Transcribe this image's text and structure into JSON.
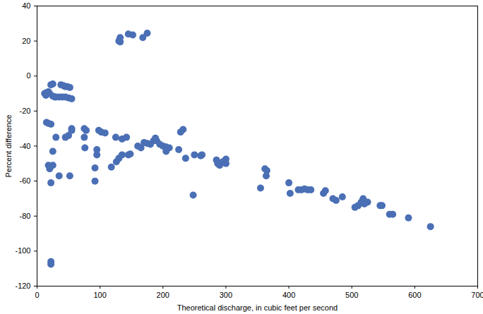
{
  "chart_data": {
    "type": "scatter",
    "x_label": "Theoretical discharge, in cubic feet per second",
    "y_label": "Percent difference",
    "color": "#4a6fb5",
    "marker": "circle",
    "grid": false,
    "xlim": [
      0,
      700
    ],
    "xticks": [
      0,
      100,
      200,
      300,
      400,
      500,
      600,
      700
    ],
    "ylim": [
      -120,
      40
    ],
    "yticks": [
      -120,
      -100,
      -80,
      -60,
      -40,
      -20,
      0,
      20,
      40
    ],
    "x": [
      130,
      132,
      145,
      152,
      168,
      175,
      132,
      12,
      15,
      18,
      20,
      22,
      25,
      28,
      30,
      35,
      38,
      42,
      45,
      48,
      52,
      40,
      45,
      50,
      55,
      25,
      14,
      15,
      18,
      22,
      30,
      45,
      50,
      55,
      55,
      75,
      78,
      98,
      102,
      108,
      125,
      135,
      142,
      75,
      76,
      95,
      95,
      118,
      126,
      130,
      135,
      145,
      148,
      160,
      165,
      170,
      175,
      180,
      185,
      188,
      190,
      195,
      200,
      205,
      210,
      205,
      225,
      228,
      232,
      236,
      250,
      260,
      262,
      285,
      287,
      290,
      295,
      300,
      300,
      248,
      355,
      362,
      364,
      365,
      400,
      402,
      415,
      420,
      425,
      430,
      435,
      455,
      458,
      470,
      475,
      485,
      505,
      510,
      515,
      518,
      520,
      525,
      545,
      548,
      560,
      565,
      590,
      625,
      18,
      20,
      25,
      25,
      22,
      35,
      52,
      92,
      92,
      22,
      22
    ],
    "values": [
      20,
      22,
      24,
      23.5,
      22,
      24.5,
      19.5,
      -10,
      -9.5,
      -9,
      -10,
      -5,
      -4.5,
      -12,
      -12,
      -12,
      -5,
      -5.5,
      -6,
      -6,
      -6.5,
      -12,
      -12,
      -12.5,
      -13,
      -11.5,
      -11,
      -26.5,
      -27,
      -27.5,
      -35,
      -35,
      -34,
      -31,
      -30,
      -30,
      -31,
      -31,
      -32,
      -32.5,
      -35,
      -36,
      -35,
      -35,
      -41,
      -42,
      -45,
      -52,
      -49,
      -47,
      -45,
      -45,
      -44.5,
      -40,
      -41,
      -38,
      -38.5,
      -39,
      -37,
      -35.5,
      -37,
      -39,
      -40,
      -40.5,
      -41,
      -43,
      -42,
      -32,
      -30.5,
      -47,
      -45,
      -45.5,
      -45,
      -48,
      -50,
      -51,
      -49,
      -47.5,
      -50,
      -68,
      -64,
      -53,
      -57,
      -54,
      -61,
      -67,
      -65,
      -65,
      -64.5,
      -65,
      -65,
      -67,
      -65.5,
      -70,
      -71,
      -69,
      -75,
      -74,
      -72,
      -70,
      -73,
      -72,
      -74,
      -74,
      -79,
      -79,
      -81,
      -86,
      -51,
      -53,
      -51,
      -43,
      -61,
      -57,
      -57,
      -52.5,
      -60,
      -106,
      -107.5
    ]
  }
}
